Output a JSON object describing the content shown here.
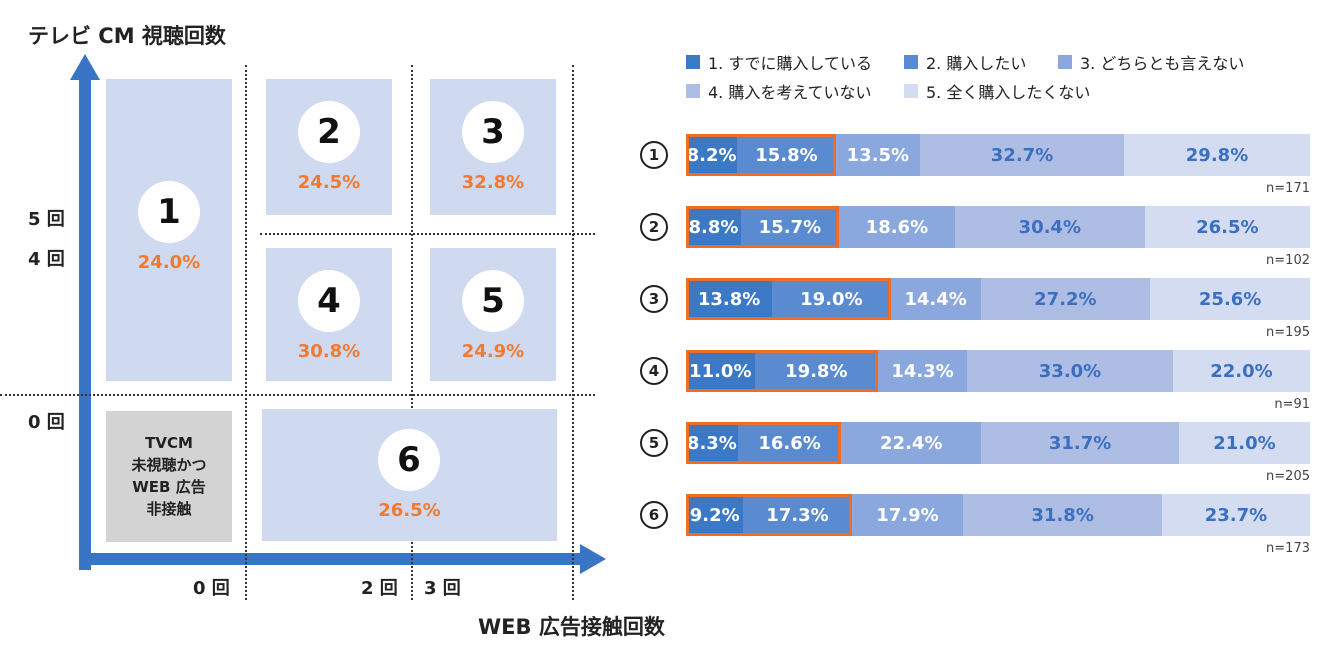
{
  "left_chart": {
    "y_title": "テレビ CM 視聴回数",
    "x_title": "WEB 広告接触回数",
    "y_ticks": [
      "5 回",
      "4 回",
      "0 回"
    ],
    "x_ticks": [
      "0 回",
      "2 回",
      "3 回"
    ],
    "cells": [
      {
        "num": "1",
        "pct": "24.0%"
      },
      {
        "num": "2",
        "pct": "24.5%"
      },
      {
        "num": "3",
        "pct": "32.8%"
      },
      {
        "num": "4",
        "pct": "30.8%"
      },
      {
        "num": "5",
        "pct": "24.9%"
      },
      {
        "num": "6",
        "pct": "26.5%"
      }
    ],
    "no_exposure_label": [
      "TVCM",
      "未視聴かつ",
      "WEB 広告",
      "非接触"
    ],
    "axis_color": "#3a74c4",
    "cell_color": "#cfd9f0",
    "pct_color": "#f07a33"
  },
  "chart_data": {
    "type": "bar",
    "stacked": true,
    "orientation": "horizontal",
    "percent_stacked": true,
    "categories": [
      "1",
      "2",
      "3",
      "4",
      "5",
      "6"
    ],
    "category_display": [
      "①",
      "②",
      "③",
      "④",
      "⑤",
      "⑥"
    ],
    "n_labels": [
      "n=171",
      "n=102",
      "n=195",
      "n=91",
      "n=205",
      "n=173"
    ],
    "series": [
      {
        "name": "1. すでに購入している",
        "color": "#3b78c5",
        "text_color": "#ffffff",
        "values": [
          8.2,
          8.8,
          13.8,
          11.0,
          8.3,
          9.2
        ]
      },
      {
        "name": "2. 購入したい",
        "color": "#5a8bd0",
        "text_color": "#ffffff",
        "values": [
          15.8,
          15.7,
          19.0,
          19.8,
          16.6,
          17.3
        ]
      },
      {
        "name": "3. どちらとも言えない",
        "color": "#8aa8de",
        "text_color": "#ffffff",
        "values": [
          13.5,
          18.6,
          14.4,
          14.3,
          22.4,
          17.9
        ]
      },
      {
        "name": "4. 購入を考えていない",
        "color": "#aebde4",
        "text_color": "#3b6fc0",
        "values": [
          32.7,
          30.4,
          27.2,
          33.0,
          31.7,
          31.8
        ]
      },
      {
        "name": "5. 全く購入したくない",
        "color": "#d3dcf1",
        "text_color": "#3b6fc0",
        "values": [
          29.8,
          26.5,
          25.6,
          22.0,
          21.0,
          23.7
        ]
      }
    ],
    "value_labels": [
      [
        "8.2%",
        "15.8%",
        "13.5%",
        "32.7%",
        "29.8%"
      ],
      [
        "8.8%",
        "15.7%",
        "18.6%",
        "30.4%",
        "26.5%"
      ],
      [
        "13.8%",
        "19.0%",
        "14.4%",
        "27.2%",
        "25.6%"
      ],
      [
        "11.0%",
        "19.8%",
        "14.3%",
        "33.0%",
        "22.0%"
      ],
      [
        "8.3%",
        "16.6%",
        "22.4%",
        "31.7%",
        "21.0%"
      ],
      [
        "9.2%",
        "17.3%",
        "17.9%",
        "31.8%",
        "23.7%"
      ]
    ],
    "highlight_series_count": 2,
    "highlight_color": "#ec6c28",
    "legend_position": "top"
  }
}
